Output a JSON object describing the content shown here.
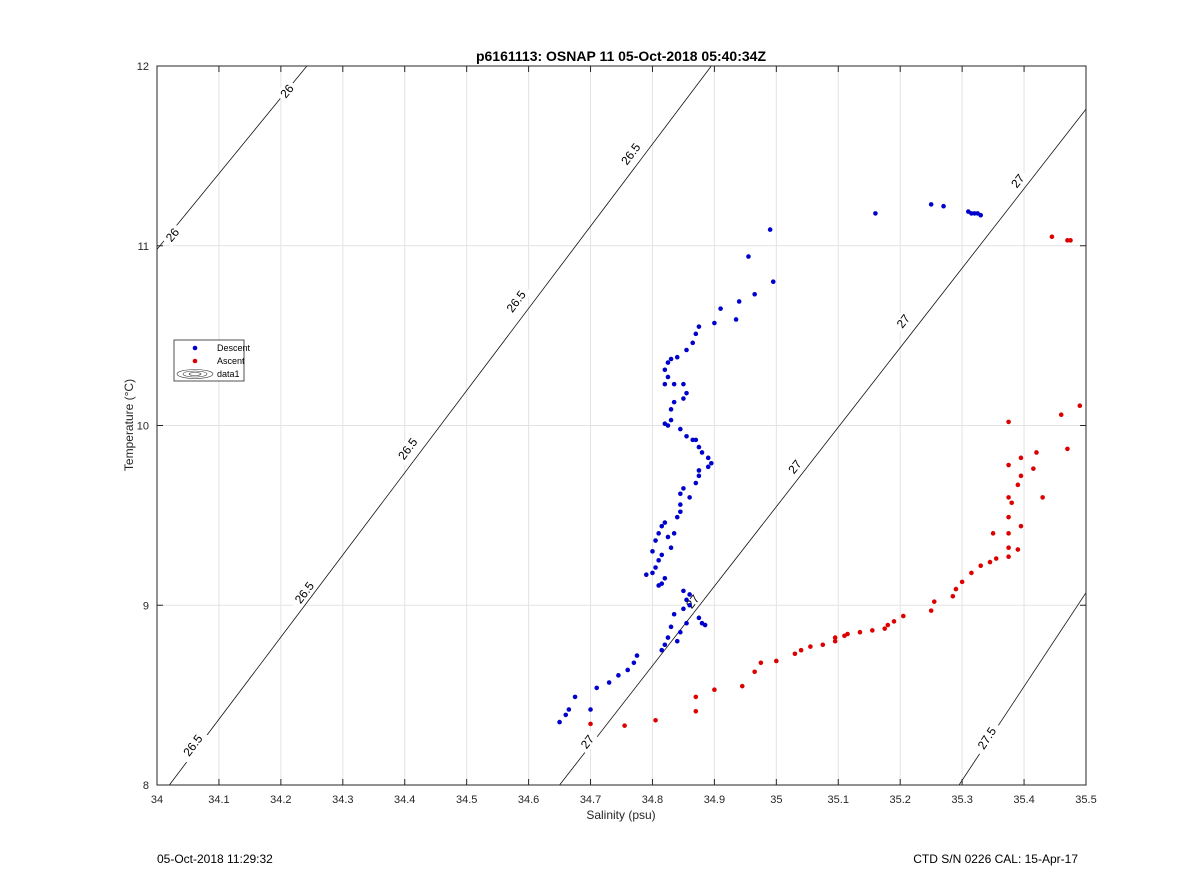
{
  "chart_data": {
    "type": "scatter",
    "title": "p6161113: OSNAP 11 05-Oct-2018 05:40:34Z",
    "xlabel": "Salinity (psu)",
    "ylabel": "Temperature (°C)",
    "xlim": [
      34,
      35.5
    ],
    "ylim": [
      8,
      12
    ],
    "x_ticks": [
      "34",
      "34.1",
      "34.2",
      "34.3",
      "34.4",
      "34.5",
      "34.6",
      "34.7",
      "34.8",
      "34.9",
      "35",
      "35.1",
      "35.2",
      "35.3",
      "35.4",
      "35.5"
    ],
    "y_ticks": [
      "8",
      "9",
      "10",
      "11",
      "12"
    ],
    "grid": true,
    "legend_position": "left",
    "legend": [
      {
        "label": "Descent",
        "color": "#0000cc",
        "marker": "dot"
      },
      {
        "label": "Ascent",
        "color": "#dd0000",
        "marker": "dot"
      },
      {
        "label": "data1",
        "color": "#000000",
        "marker": "contour"
      }
    ],
    "series": [
      {
        "name": "Descent",
        "color": "#0000cc",
        "points": [
          [
            34.65,
            8.35
          ],
          [
            34.66,
            8.39
          ],
          [
            34.665,
            8.42
          ],
          [
            34.675,
            8.49
          ],
          [
            34.7,
            8.42
          ],
          [
            34.71,
            8.54
          ],
          [
            34.73,
            8.57
          ],
          [
            34.745,
            8.61
          ],
          [
            34.76,
            8.64
          ],
          [
            34.77,
            8.68
          ],
          [
            34.775,
            8.72
          ],
          [
            34.815,
            8.75
          ],
          [
            34.82,
            8.78
          ],
          [
            34.825,
            8.82
          ],
          [
            34.83,
            8.88
          ],
          [
            34.84,
            8.8
          ],
          [
            34.845,
            8.85
          ],
          [
            34.855,
            8.9
          ],
          [
            34.835,
            8.95
          ],
          [
            34.85,
            8.98
          ],
          [
            34.86,
            9.0
          ],
          [
            34.855,
            9.03
          ],
          [
            34.86,
            9.06
          ],
          [
            34.85,
            9.08
          ],
          [
            34.875,
            8.93
          ],
          [
            34.88,
            8.9
          ],
          [
            34.885,
            8.89
          ],
          [
            34.79,
            9.17
          ],
          [
            34.8,
            9.18
          ],
          [
            34.81,
            9.11
          ],
          [
            34.815,
            9.12
          ],
          [
            34.82,
            9.15
          ],
          [
            34.805,
            9.21
          ],
          [
            34.81,
            9.25
          ],
          [
            34.815,
            9.28
          ],
          [
            34.8,
            9.3
          ],
          [
            34.805,
            9.36
          ],
          [
            34.81,
            9.4
          ],
          [
            34.815,
            9.44
          ],
          [
            34.82,
            9.46
          ],
          [
            34.825,
            9.38
          ],
          [
            34.83,
            9.32
          ],
          [
            34.835,
            9.4
          ],
          [
            34.84,
            9.49
          ],
          [
            34.845,
            9.52
          ],
          [
            34.845,
            9.56
          ],
          [
            34.845,
            9.62
          ],
          [
            34.85,
            9.65
          ],
          [
            34.86,
            9.6
          ],
          [
            34.87,
            9.68
          ],
          [
            34.875,
            9.72
          ],
          [
            34.875,
            9.75
          ],
          [
            34.89,
            9.77
          ],
          [
            34.895,
            9.79
          ],
          [
            34.89,
            9.82
          ],
          [
            34.88,
            9.85
          ],
          [
            34.875,
            9.88
          ],
          [
            34.865,
            9.92
          ],
          [
            34.87,
            9.92
          ],
          [
            34.855,
            9.94
          ],
          [
            34.845,
            9.98
          ],
          [
            34.825,
            10.0
          ],
          [
            34.82,
            10.01
          ],
          [
            34.83,
            10.03
          ],
          [
            34.83,
            10.09
          ],
          [
            34.835,
            10.13
          ],
          [
            34.85,
            10.15
          ],
          [
            34.855,
            10.18
          ],
          [
            34.85,
            10.23
          ],
          [
            34.835,
            10.23
          ],
          [
            34.82,
            10.23
          ],
          [
            34.825,
            10.27
          ],
          [
            34.82,
            10.31
          ],
          [
            34.825,
            10.35
          ],
          [
            34.83,
            10.37
          ],
          [
            34.84,
            10.38
          ],
          [
            34.855,
            10.42
          ],
          [
            34.865,
            10.46
          ],
          [
            34.87,
            10.51
          ],
          [
            34.875,
            10.55
          ],
          [
            34.9,
            10.57
          ],
          [
            34.91,
            10.65
          ],
          [
            34.935,
            10.59
          ],
          [
            34.94,
            10.69
          ],
          [
            34.965,
            10.73
          ],
          [
            34.995,
            10.8
          ],
          [
            34.955,
            10.94
          ],
          [
            34.99,
            11.09
          ],
          [
            35.16,
            11.18
          ],
          [
            35.25,
            11.23
          ],
          [
            35.27,
            11.22
          ],
          [
            35.31,
            11.19
          ],
          [
            35.315,
            11.18
          ],
          [
            35.32,
            11.18
          ],
          [
            35.325,
            11.18
          ],
          [
            35.33,
            11.17
          ]
        ]
      },
      {
        "name": "Ascent",
        "color": "#dd0000",
        "points": [
          [
            34.7,
            8.34
          ],
          [
            34.755,
            8.33
          ],
          [
            34.805,
            8.36
          ],
          [
            34.87,
            8.41
          ],
          [
            34.87,
            8.49
          ],
          [
            34.9,
            8.53
          ],
          [
            34.945,
            8.55
          ],
          [
            34.965,
            8.63
          ],
          [
            34.975,
            8.68
          ],
          [
            35.0,
            8.69
          ],
          [
            35.03,
            8.73
          ],
          [
            35.04,
            8.75
          ],
          [
            35.055,
            8.77
          ],
          [
            35.075,
            8.78
          ],
          [
            35.095,
            8.8
          ],
          [
            35.095,
            8.82
          ],
          [
            35.11,
            8.83
          ],
          [
            35.115,
            8.84
          ],
          [
            35.135,
            8.85
          ],
          [
            35.155,
            8.86
          ],
          [
            35.175,
            8.87
          ],
          [
            35.18,
            8.89
          ],
          [
            35.19,
            8.91
          ],
          [
            35.205,
            8.94
          ],
          [
            35.25,
            8.97
          ],
          [
            35.255,
            9.02
          ],
          [
            35.285,
            9.05
          ],
          [
            35.29,
            9.09
          ],
          [
            35.3,
            9.13
          ],
          [
            35.315,
            9.18
          ],
          [
            35.33,
            9.22
          ],
          [
            35.345,
            9.24
          ],
          [
            35.355,
            9.26
          ],
          [
            35.375,
            9.27
          ],
          [
            35.39,
            9.31
          ],
          [
            35.375,
            9.32
          ],
          [
            35.35,
            9.4
          ],
          [
            35.375,
            9.4
          ],
          [
            35.395,
            9.44
          ],
          [
            35.375,
            9.49
          ],
          [
            35.38,
            9.57
          ],
          [
            35.375,
            9.6
          ],
          [
            35.39,
            9.67
          ],
          [
            35.395,
            9.72
          ],
          [
            35.415,
            9.76
          ],
          [
            35.43,
            9.6
          ],
          [
            35.375,
            9.78
          ],
          [
            35.395,
            9.82
          ],
          [
            35.42,
            9.85
          ],
          [
            35.47,
            9.87
          ],
          [
            35.375,
            10.02
          ],
          [
            35.46,
            10.06
          ],
          [
            35.49,
            10.11
          ],
          [
            35.445,
            11.05
          ],
          [
            35.47,
            11.03
          ],
          [
            35.475,
            11.03
          ]
        ]
      }
    ],
    "contours": [
      {
        "label": "26",
        "points": [
          [
            34.0,
            10.98
          ],
          [
            34.242,
            12.0
          ]
        ],
        "labels_at": [
          [
            34.025,
            11.06
          ],
          [
            34.21,
            11.86
          ]
        ]
      },
      {
        "label": "26.5",
        "points": [
          [
            34.02,
            8.0
          ],
          [
            34.895,
            12.0
          ]
        ],
        "labels_at": [
          [
            34.058,
            8.22
          ],
          [
            34.238,
            9.07
          ],
          [
            34.405,
            9.87
          ],
          [
            34.58,
            10.69
          ],
          [
            34.765,
            11.51
          ]
        ]
      },
      {
        "label": "27",
        "points": [
          [
            34.65,
            8.0
          ],
          [
            35.5,
            11.76
          ]
        ],
        "labels_at": [
          [
            34.695,
            8.24
          ],
          [
            34.865,
            9.02
          ],
          [
            35.03,
            9.77
          ],
          [
            35.205,
            10.58
          ],
          [
            35.39,
            11.36
          ]
        ]
      },
      {
        "label": "27.5",
        "points": [
          [
            35.295,
            8.0
          ],
          [
            35.5,
            9.07
          ]
        ],
        "labels_at": [
          [
            35.34,
            8.26
          ]
        ]
      }
    ]
  },
  "footer": {
    "timestamp": "05-Oct-2018 11:29:32",
    "instrument": "CTD S/N 0226  CAL: 15-Apr-17"
  }
}
